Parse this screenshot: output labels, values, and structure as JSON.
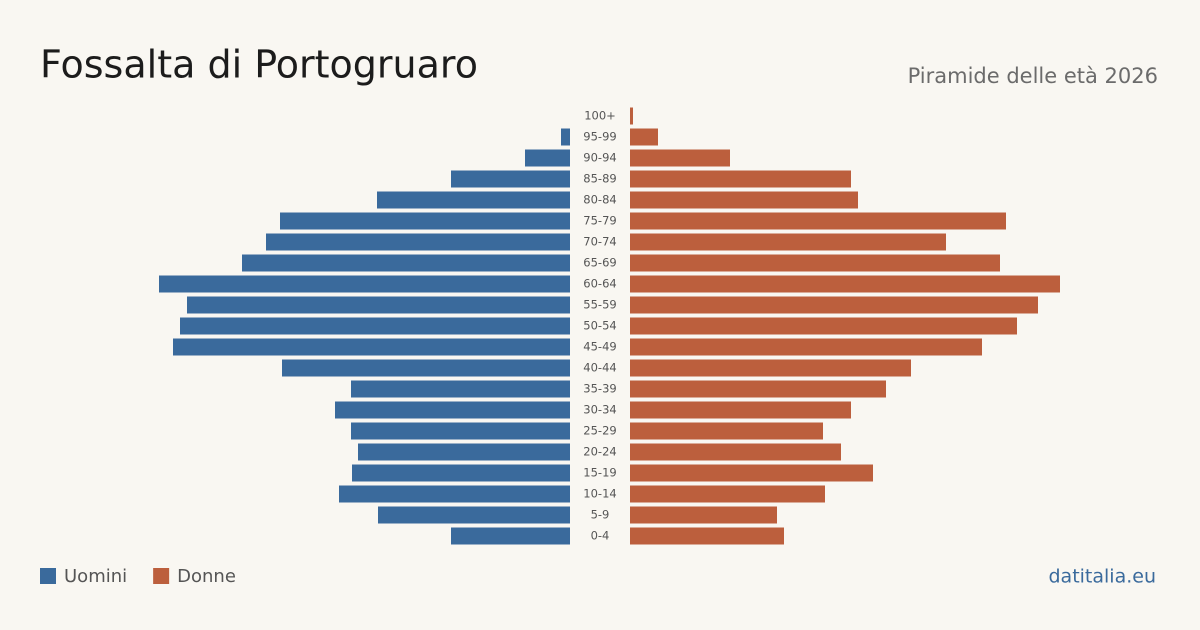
{
  "chart_data": {
    "type": "pyramid",
    "title": "Fossalta di Portogruaro",
    "subtitle": "Piramide delle età 2026",
    "source": "datitalia.eu",
    "categories": [
      "100+",
      "95-99",
      "90-94",
      "85-89",
      "80-84",
      "75-79",
      "70-74",
      "65-69",
      "60-64",
      "55-59",
      "50-54",
      "45-49",
      "40-44",
      "35-39",
      "30-34",
      "25-29",
      "20-24",
      "15-19",
      "10-14",
      "5-9",
      "0-4"
    ],
    "series": [
      {
        "name": "Uomini",
        "color": "#3a6a9c",
        "values": [
          0,
          9,
          45,
          119,
          193,
          290,
          304,
          328,
          411,
          383,
          390,
          397,
          288,
          219,
          235,
          219,
          212,
          218,
          231,
          192,
          119
        ]
      },
      {
        "name": "Donne",
        "color": "#bc5f3d",
        "values": [
          3,
          28,
          100,
          221,
          228,
          376,
          316,
          370,
          430,
          408,
          387,
          352,
          281,
          256,
          221,
          193,
          211,
          243,
          195,
          147,
          154
        ]
      }
    ]
  }
}
